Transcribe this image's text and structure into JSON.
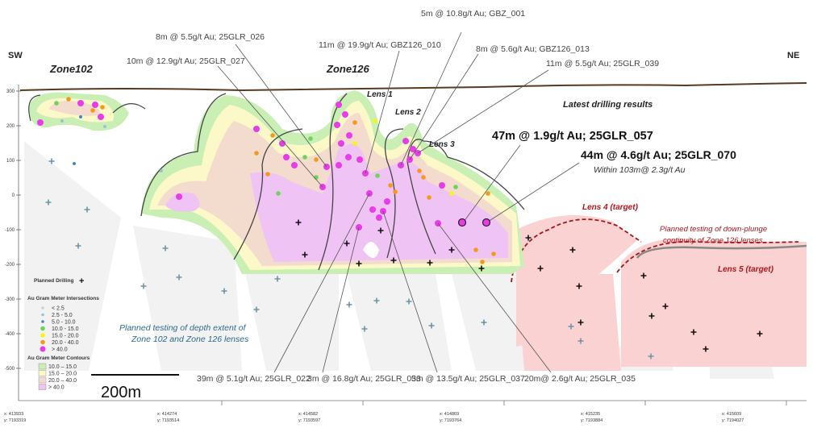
{
  "orientation": {
    "left": "SW",
    "right": "NE"
  },
  "zones": {
    "zone102": "Zone102",
    "zone126": "Zone126"
  },
  "lenses": {
    "lens1": "Lens 1",
    "lens2": "Lens 2",
    "lens3": "Lens 3",
    "lens4": "Lens 4 (target)",
    "lens5": "Lens 5 (target)"
  },
  "y_axis": {
    "ticks": [
      "300",
      "200",
      "100",
      "0",
      "-100",
      "-200",
      "-300",
      "-400",
      "-500"
    ]
  },
  "latest": {
    "title": "Latest drilling results",
    "r057": "47m @ 1.9g/t Au; 25GLR_057",
    "r070": "44m @ 4.6g/t Au; 25GLR_070",
    "within": "Within 103m@ 2.3g/t Au"
  },
  "intercepts_top": [
    "8m @ 5.5g/t Au; 25GLR_026",
    "10m @ 12.9g/t Au; 25GLR_027",
    "11m @ 19.9g/t Au; GBZ126_010",
    "5m @ 10.8g/t Au; GBZ_001",
    "8m @ 5.6g/t Au; GBZ126_013",
    "11m @ 5.5g/t Au; 25GLR_039"
  ],
  "intercepts_bottom": [
    "39m @ 5.1g/t Au; 25GLR_022",
    "3m @ 16.8g/t Au; 25GLR_033",
    "5m @ 13.5g/t Au; 25GLR_037",
    "20m@ 2.6g/t Au; 25GLR_035"
  ],
  "notes": {
    "plunge1": "Planned testing of down-plunge",
    "plunge2": "continuity of Zone 126 lenses",
    "depth1": "Planned testing of depth extent of",
    "depth2": "Zone 102 and Zone 126 lenses"
  },
  "legend": {
    "planned": "Planned Drilling",
    "intersections_title": "Au Gram Meter Intersections",
    "intersections": [
      {
        "label": "< 2.5",
        "color": "#cfcfcf"
      },
      {
        "label": "2.5 - 5.0",
        "color": "#9fbfd6"
      },
      {
        "label": "5.0 - 10.0",
        "color": "#3f86c8"
      },
      {
        "label": "10.0 - 15.0",
        "color": "#6dd35a"
      },
      {
        "label": "15.0 - 20.0",
        "color": "#f5f51a"
      },
      {
        "label": "20.0 - 40.0",
        "color": "#f39a1a"
      },
      {
        "label": "> 40.0",
        "color": "#e83ce8"
      }
    ],
    "contours_title": "Au Gram Meter Contours",
    "contours": [
      {
        "label": "10.0 – 15.0",
        "color": "#c9efb4"
      },
      {
        "label": "15.0 – 20.0",
        "color": "#fdf8c8"
      },
      {
        "label": "20.0 – 40.0",
        "color": "#f3dccd"
      },
      {
        "label": "> 40.0",
        "color": "#efc3f3"
      }
    ]
  },
  "scale_bar": "200m",
  "coordinates": [
    {
      "x": "x: 413933",
      "y": "y: 7193319"
    },
    {
      "x": "x: 414274",
      "y": "y: 7193514"
    },
    {
      "x": "x: 414582",
      "y": "y: 7193597"
    },
    {
      "x": "x: 414869",
      "y": "y: 7193764"
    },
    {
      "x": "x: 415235",
      "y": "y: 7193884"
    },
    {
      "x": "x: 415609",
      "y": "y: 7194027"
    }
  ]
}
